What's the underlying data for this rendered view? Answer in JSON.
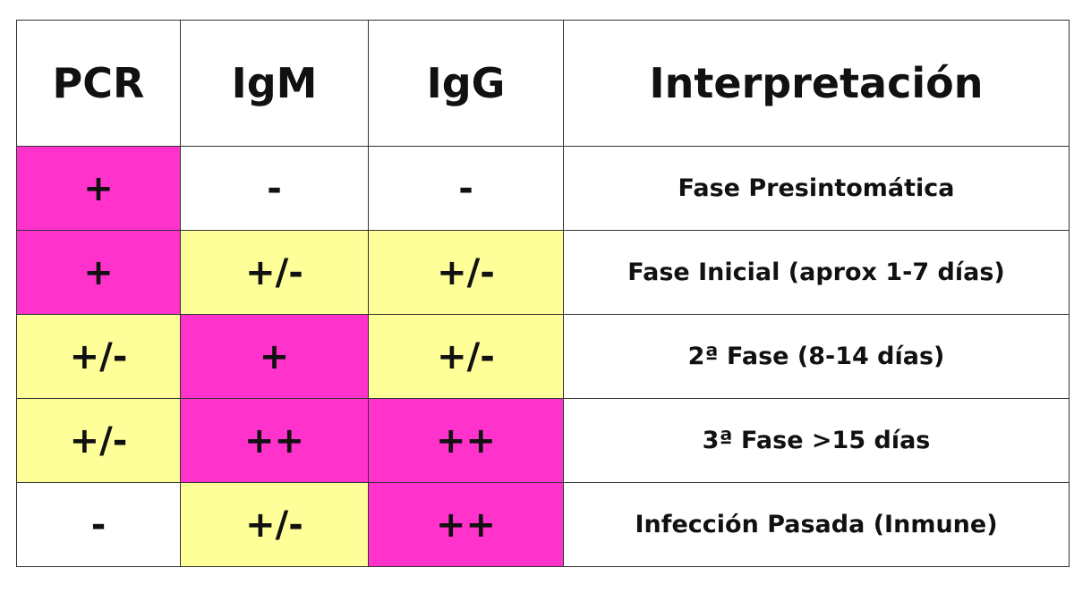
{
  "colors": {
    "magenta": "#ff33cc",
    "yellow": "#ffff99",
    "white": "#ffffff",
    "border": "#333333",
    "text": "#111111"
  },
  "table": {
    "headers": [
      "PCR",
      "IgM",
      "IgG",
      "Interpretación"
    ],
    "rows": [
      {
        "cells": [
          {
            "value": "+",
            "fill": "magenta"
          },
          {
            "value": "-",
            "fill": "white"
          },
          {
            "value": "-",
            "fill": "white"
          }
        ],
        "interpretation": "Fase Presintomática"
      },
      {
        "cells": [
          {
            "value": "+",
            "fill": "magenta"
          },
          {
            "value": "+/-",
            "fill": "yellow"
          },
          {
            "value": "+/-",
            "fill": "yellow"
          }
        ],
        "interpretation": "Fase Inicial (aprox 1-7 días)"
      },
      {
        "cells": [
          {
            "value": "+/-",
            "fill": "yellow"
          },
          {
            "value": "+",
            "fill": "magenta"
          },
          {
            "value": "+/-",
            "fill": "yellow"
          }
        ],
        "interpretation": "2ª Fase (8-14 días)"
      },
      {
        "cells": [
          {
            "value": "+/-",
            "fill": "yellow"
          },
          {
            "value": "++",
            "fill": "magenta"
          },
          {
            "value": "++",
            "fill": "magenta"
          }
        ],
        "interpretation": "3ª Fase >15 días"
      },
      {
        "cells": [
          {
            "value": "-",
            "fill": "white"
          },
          {
            "value": "+/-",
            "fill": "yellow"
          },
          {
            "value": "++",
            "fill": "magenta"
          }
        ],
        "interpretation": "Infección Pasada (Inmune)"
      }
    ]
  }
}
